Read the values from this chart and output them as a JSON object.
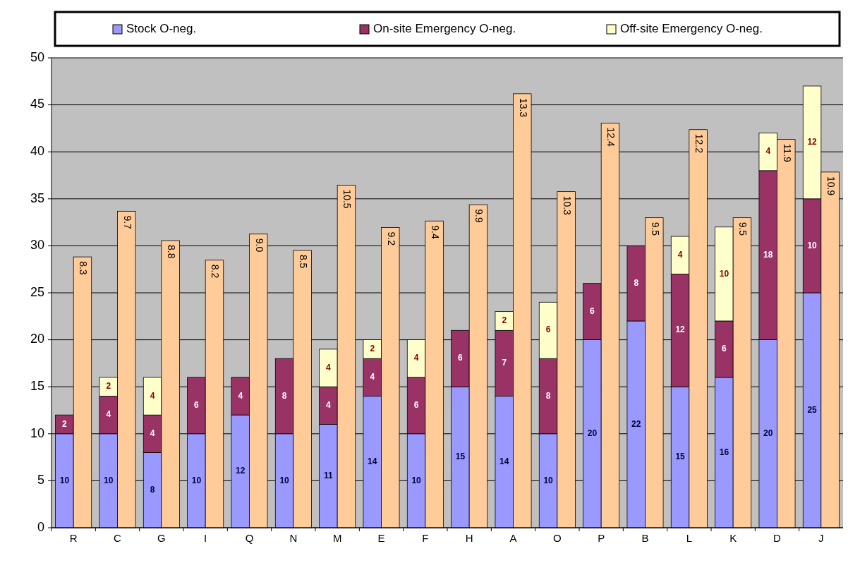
{
  "chart_data": {
    "type": "bar",
    "stacked": true,
    "categories": [
      "R",
      "C",
      "G",
      "I",
      "Q",
      "N",
      "M",
      "E",
      "F",
      "H",
      "A",
      "O",
      "P",
      "B",
      "L",
      "K",
      "D",
      "J"
    ],
    "series": [
      {
        "name": "Stock O-neg.",
        "color": "#9999ff",
        "values": [
          10,
          10,
          8,
          10,
          12,
          10,
          11,
          14,
          10,
          15,
          14,
          10,
          20,
          22,
          15,
          16,
          20,
          25
        ]
      },
      {
        "name": "On-site Emergency O-neg.",
        "color": "#993366",
        "values": [
          2,
          4,
          4,
          6,
          4,
          8,
          4,
          4,
          6,
          6,
          7,
          8,
          6,
          8,
          12,
          6,
          18,
          10
        ]
      },
      {
        "name": "Off-site Emergency O-neg.",
        "color": "#ffffcc",
        "values": [
          null,
          2,
          4,
          null,
          null,
          null,
          4,
          2,
          4,
          null,
          2,
          6,
          null,
          null,
          4,
          10,
          4,
          12
        ]
      },
      {
        "color": "#ffcc99",
        "axis": "y2",
        "values": [
          8.3,
          9.7,
          8.8,
          8.2,
          9.0,
          8.5,
          10.5,
          9.2,
          9.4,
          9.9,
          13.3,
          10.3,
          12.4,
          9.5,
          12.2,
          9.5,
          11.9,
          10.9
        ],
        "value_labels": [
          "8.3",
          "9.7",
          "8.8",
          "8.2",
          "9.0",
          "8.5",
          "10.5",
          "9.2",
          "9.4",
          "9.9",
          "13.3",
          "10.3",
          "12.4",
          "9.5",
          "12.2",
          "9.5",
          "11.9",
          "10.9"
        ]
      }
    ],
    "ylim": [
      0,
      50
    ],
    "yticks": [
      0,
      5,
      10,
      15,
      20,
      25,
      30,
      35,
      40,
      45,
      50
    ],
    "y2lim": [
      0,
      14.4
    ],
    "grid": "y",
    "legend": "top",
    "data_labels": true
  }
}
